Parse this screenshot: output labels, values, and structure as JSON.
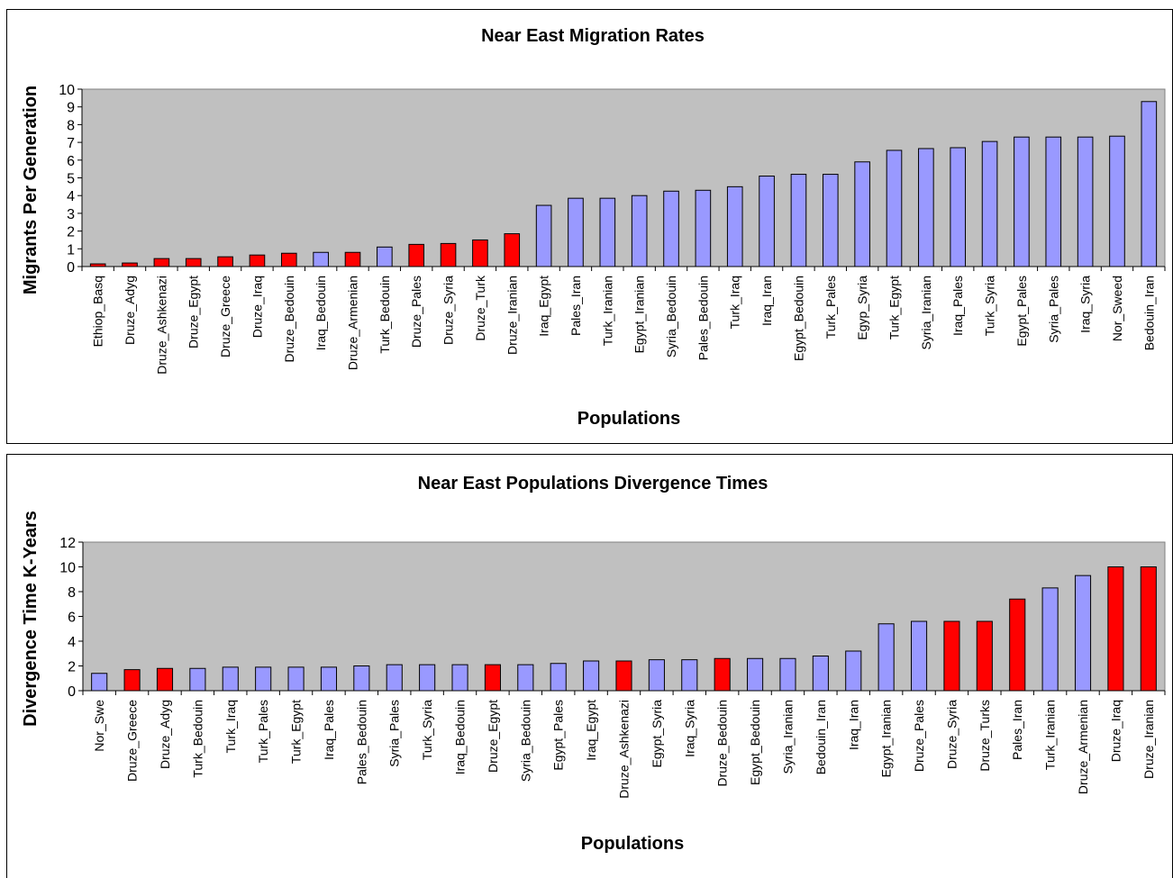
{
  "chart_data": [
    {
      "type": "bar",
      "title": "Near East Migration Rates",
      "xlabel": "Populations",
      "ylabel": "Migrants Per Generation",
      "ylim": [
        0,
        10
      ],
      "yticks": [
        0,
        1,
        2,
        3,
        4,
        5,
        6,
        7,
        8,
        9,
        10
      ],
      "grid": false,
      "legend": "none",
      "colors": {
        "highlight": "#ff0000",
        "normal": "#9999ff",
        "plot_bg": "#c0c0c0"
      },
      "categories": [
        "Ethiop_Basq",
        "Druze_Adyg",
        "Druze_Ashkenazi",
        "Druze_Egypt",
        "Druze_Greece",
        "Druze_Iraq",
        "Druze_Bedouin",
        "Iraq_Bedouin",
        "Druze_Armenian",
        "Turk_Bedouin",
        "Druze_Pales",
        "Druze_Syria",
        "Druze_Turk",
        "Druze_Iranian",
        "Iraq_Egypt",
        "Pales_Iran",
        "Turk_Iranian",
        "Egypt_Iranian",
        "Syria_Bedouin",
        "Pales_Bedouin",
        "Turk_Iraq",
        "Iraq_Iran",
        "Egypt_Bedouin",
        "Turk_Pales",
        "Egyp_Syria",
        "Turk_Egypt",
        "Syria_Iranian",
        "Iraq_Pales",
        "Turk_Syria",
        "Egypt_Pales",
        "Syria_Pales",
        "Iraq_Syria",
        "Nor_Sweed",
        "Bedouin_Iran"
      ],
      "values": [
        0.15,
        0.2,
        0.45,
        0.45,
        0.55,
        0.65,
        0.75,
        0.8,
        0.8,
        1.1,
        1.25,
        1.3,
        1.5,
        1.85,
        3.45,
        3.85,
        3.85,
        4.0,
        4.25,
        4.3,
        4.5,
        5.1,
        5.2,
        5.2,
        5.9,
        6.55,
        6.65,
        6.7,
        7.05,
        7.3,
        7.3,
        7.3,
        7.35,
        9.3
      ],
      "highlighted": [
        true,
        true,
        true,
        true,
        true,
        true,
        true,
        false,
        true,
        false,
        true,
        true,
        true,
        true,
        false,
        false,
        false,
        false,
        false,
        false,
        false,
        false,
        false,
        false,
        false,
        false,
        false,
        false,
        false,
        false,
        false,
        false,
        false,
        false
      ]
    },
    {
      "type": "bar",
      "title": "Near East Populations Divergence Times",
      "xlabel": "Populations",
      "ylabel": "Divergence Time K-Years",
      "ylim": [
        0,
        12
      ],
      "yticks": [
        0,
        2,
        4,
        6,
        8,
        10,
        12
      ],
      "grid": false,
      "legend": "none",
      "colors": {
        "highlight": "#ff0000",
        "normal": "#9999ff",
        "plot_bg": "#c0c0c0"
      },
      "categories": [
        "Nor_Swe",
        "Druze_Greece",
        "Druze_Adyg",
        "Turk_Bedouin",
        "Turk_Iraq",
        "Turk_Pales",
        "Turk_Egypt",
        "Iraq_Pales",
        "Pales_Bedouin",
        "Syria_Pales",
        "Turk_Syria",
        "Iraq_Bedouin",
        "Druze_Egypt",
        "Syria_Bedouin",
        "Egypt_Pales",
        "Iraq_Egypt",
        "Druze_Ashkenazi",
        "Egypt_Syria",
        "Iraq_Syria",
        "Druze_Bedouin",
        "Egypt_Bedouin",
        "Syria_Iranian",
        "Bedouin_Iran",
        "Iraq_Iran",
        "Egypt_Iranian",
        "Druze_Pales",
        "Druze_Syria",
        "Druze_Turks",
        "Pales_Iran",
        "Turk_Iranian",
        "Druze_Armenian",
        "Druze_Iraq",
        "Druze_Iranian"
      ],
      "values": [
        1.4,
        1.7,
        1.8,
        1.8,
        1.9,
        1.9,
        1.9,
        1.9,
        2.0,
        2.1,
        2.1,
        2.1,
        2.1,
        2.1,
        2.2,
        2.4,
        2.4,
        2.5,
        2.5,
        2.6,
        2.6,
        2.6,
        2.8,
        3.2,
        5.4,
        5.6,
        5.6,
        5.6,
        7.4,
        8.3,
        9.3,
        10.0,
        10.0
      ],
      "highlighted": [
        false,
        true,
        true,
        false,
        false,
        false,
        false,
        false,
        false,
        false,
        false,
        false,
        true,
        false,
        false,
        false,
        true,
        false,
        false,
        true,
        false,
        false,
        false,
        false,
        false,
        false,
        true,
        true,
        true,
        false,
        false,
        true,
        true
      ]
    }
  ]
}
